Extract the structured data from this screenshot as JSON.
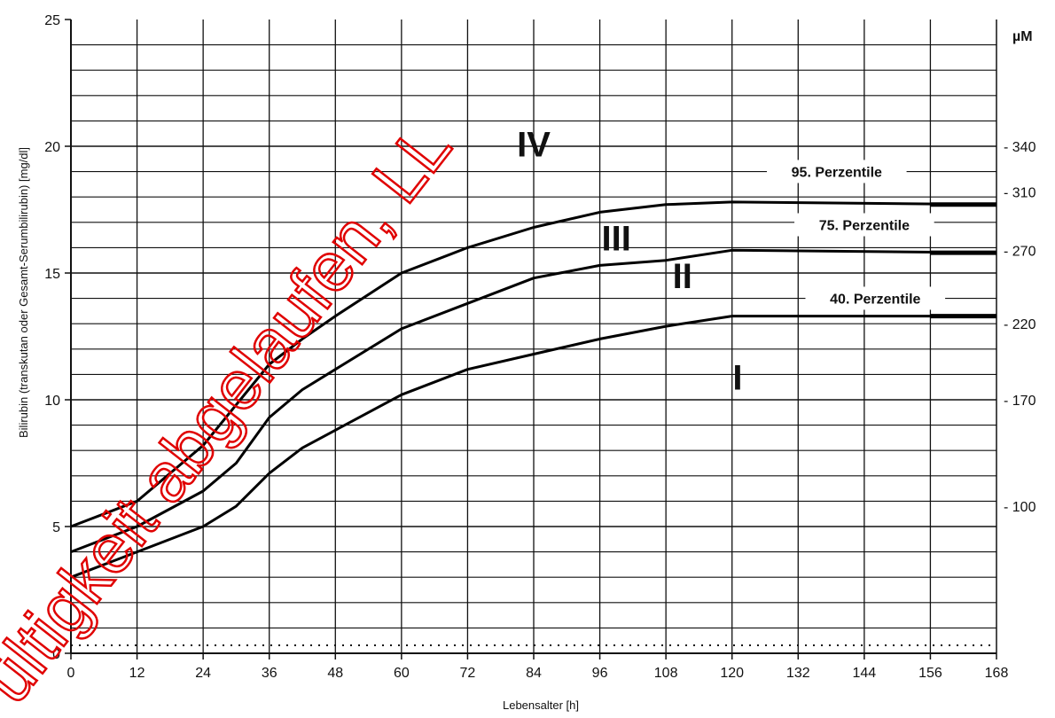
{
  "chart_data": {
    "type": "line",
    "xlabel": "Lebensalter [h]",
    "ylabel": "Bilirubin (transkutan oder Gesamt-Serumbilirubin) [mg/dl]",
    "xlim": [
      0,
      168
    ],
    "ylim": [
      0,
      25
    ],
    "x_ticks": [
      "0",
      "12",
      "24",
      "36",
      "48",
      "60",
      "72",
      "84",
      "96",
      "108",
      "120",
      "132",
      "144",
      "156",
      "168"
    ],
    "y_ticks": [
      "0",
      "5",
      "10",
      "15",
      "20",
      "25"
    ],
    "right_axis": {
      "unit": "µM",
      "ticks": [
        {
          "label": "- 340",
          "y": 20
        },
        {
          "label": "- 310",
          "y": 18.2
        },
        {
          "label": "- 270",
          "y": 15.9
        },
        {
          "label": "- 220",
          "y": 13.0
        },
        {
          "label": "- 170",
          "y": 10.0
        },
        {
          "label": "- 100",
          "y": 5.8
        }
      ]
    },
    "grid": true,
    "series": [
      {
        "name": "95. Perzentile",
        "label_at": {
          "x": 139,
          "y": 18.9
        },
        "x": [
          0,
          12,
          24,
          30,
          36,
          42,
          48,
          60,
          72,
          84,
          96,
          108,
          120,
          168
        ],
        "y": [
          5.0,
          6.0,
          8.2,
          9.8,
          11.4,
          12.4,
          13.3,
          15.0,
          16.0,
          16.8,
          17.4,
          17.7,
          17.8,
          17.7
        ]
      },
      {
        "name": "75. Perzentile",
        "label_at": {
          "x": 144,
          "y": 16.8
        },
        "x": [
          0,
          12,
          24,
          30,
          36,
          42,
          48,
          60,
          72,
          84,
          96,
          108,
          120,
          168
        ],
        "y": [
          4.0,
          5.0,
          6.4,
          7.5,
          9.3,
          10.4,
          11.2,
          12.8,
          13.8,
          14.8,
          15.3,
          15.5,
          15.9,
          15.8
        ]
      },
      {
        "name": "40. Perzentile",
        "label_at": {
          "x": 146,
          "y": 13.9
        },
        "x": [
          0,
          12,
          24,
          30,
          36,
          42,
          48,
          60,
          72,
          84,
          96,
          108,
          120,
          168
        ],
        "y": [
          3.0,
          4.0,
          5.0,
          5.8,
          7.1,
          8.1,
          8.8,
          10.2,
          11.2,
          11.8,
          12.4,
          12.9,
          13.3,
          13.3
        ]
      }
    ],
    "zones": [
      {
        "label": "IV",
        "x": 84,
        "y": 19.6
      },
      {
        "label": "III",
        "x": 99,
        "y": 15.9
      },
      {
        "label": "II",
        "x": 111,
        "y": 14.4
      },
      {
        "label": "I",
        "x": 121,
        "y": 10.4
      }
    ]
  },
  "watermark": "ültigkeit abgelaufen, LL"
}
